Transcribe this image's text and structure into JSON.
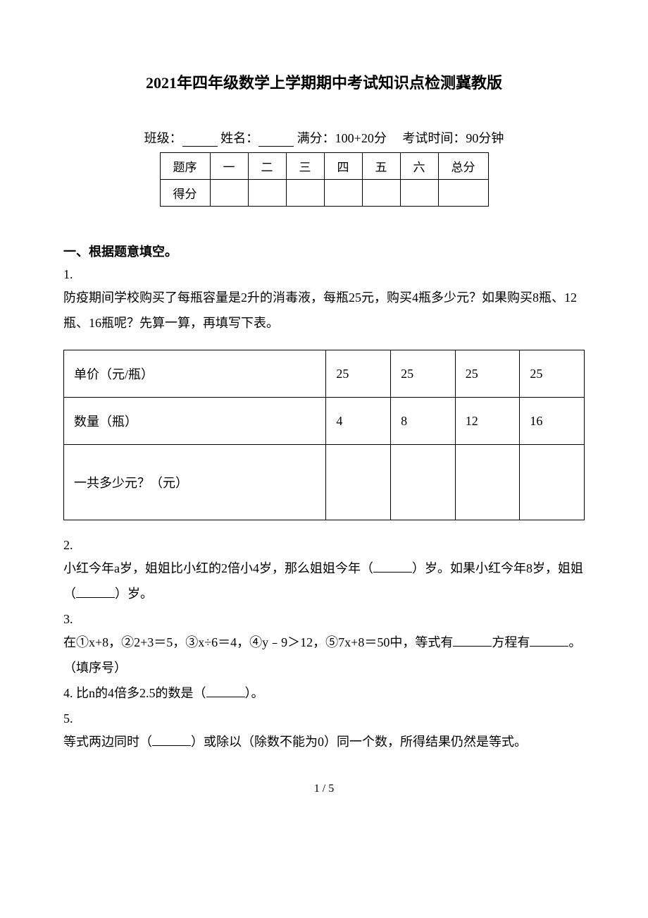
{
  "title": "2021年四年级数学上学期期中考试知识点检测冀教版",
  "info": {
    "class_label": "班级：",
    "name_label": "姓名：",
    "full_marks_label": "满分：",
    "full_marks_value": "100+20分",
    "time_label": "考试时间：",
    "time_value": "90分钟"
  },
  "score_table": {
    "headers": [
      "题序",
      "一",
      "二",
      "三",
      "四",
      "五",
      "六",
      "总分"
    ],
    "score_label": "得分"
  },
  "section1_heading": "一、根据题意填空。",
  "q1": {
    "num": "1.",
    "text": "防疫期间学校购买了每瓶容量是2升的消毒液，每瓶25元，购买4瓶多少元？如果购买8瓶、12瓶、16瓶呢？先算一算，再填写下表。",
    "table": {
      "row1_label": "单价（元/瓶）",
      "row1_vals": [
        "25",
        "25",
        "25",
        "25"
      ],
      "row2_label": "数量（瓶）",
      "row2_vals": [
        "4",
        "8",
        "12",
        "16"
      ],
      "row3_label": "一共多少元？（元）",
      "row3_vals": [
        "",
        "",
        "",
        ""
      ]
    }
  },
  "q2": {
    "num": "2.",
    "text_before1": "小红今年a岁，姐姐比小红的2倍小4岁，那么姐姐今年（",
    "text_mid1": "）岁。如果小红今年8岁，姐姐（",
    "text_after1": "）岁。"
  },
  "q3": {
    "num": "3.",
    "text_before": "在①x+8，②2+3＝5，③x÷6＝4，④y﹣9＞12，⑤7x+8＝50中，等式有",
    "text_mid": "方程有",
    "text_after": "。（填序号）"
  },
  "q4": {
    "num": "4.",
    "text_before": "比n的4倍多2.5的数是（",
    "text_after": "）。"
  },
  "q5": {
    "num": "5.",
    "text_before": "等式两边同时（",
    "text_after": "）或除以（除数不能为0）同一个数，所得结果仍然是等式。"
  },
  "page_num": "1 / 5"
}
